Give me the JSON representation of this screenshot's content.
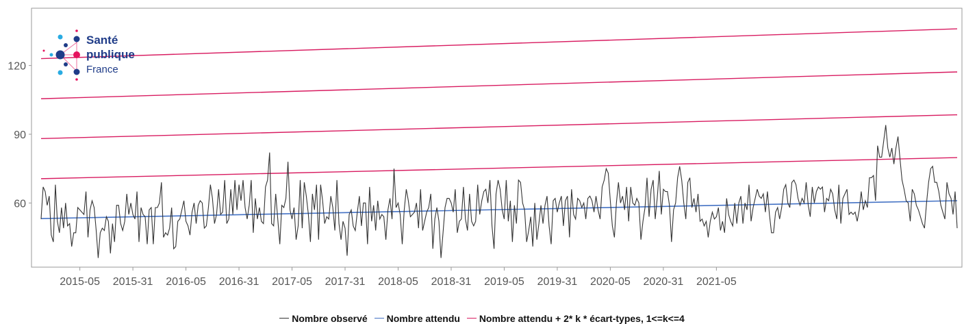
{
  "chart_data": {
    "type": "line",
    "x_axis": {
      "tick_labels": [
        "2015-05",
        "2015-31",
        "2016-05",
        "2016-31",
        "2017-05",
        "2017-31",
        "2018-05",
        "2018-31",
        "2019-05",
        "2019-31",
        "2020-05",
        "2020-31",
        "2021-05"
      ],
      "tick_positions_weekindex": [
        19,
        45,
        71,
        97,
        123,
        149,
        175,
        201,
        227,
        253,
        279,
        305,
        331
      ]
    },
    "y_axis": {
      "ticks": [
        60,
        90,
        120
      ],
      "ylim": [
        32,
        145
      ]
    },
    "grid": false,
    "legend_position": "bottom",
    "series": [
      {
        "name": "Nombre observé",
        "color": "#333333",
        "values": [
          53,
          67,
          65,
          59,
          63,
          46,
          43,
          68,
          52,
          47,
          58,
          49,
          60,
          50,
          51,
          41,
          47,
          47,
          58,
          57,
          56,
          55,
          65,
          45,
          57,
          61,
          58,
          48,
          36,
          47,
          49,
          48,
          54,
          52,
          38,
          51,
          43,
          59,
          59,
          51,
          48,
          52,
          64,
          55,
          60,
          55,
          53,
          65,
          43,
          58,
          55,
          54,
          42,
          57,
          58,
          42,
          58,
          58,
          60,
          69,
          45,
          47,
          46,
          49,
          58,
          40,
          41,
          52,
          53,
          57,
          61,
          52,
          50,
          46,
          56,
          60,
          51,
          59,
          61,
          60,
          49,
          50,
          58,
          68,
          62,
          51,
          55,
          66,
          55,
          56,
          70,
          51,
          53,
          66,
          55,
          70,
          57,
          68,
          61,
          70,
          58,
          53,
          59,
          70,
          47,
          62,
          53,
          58,
          52,
          51,
          67,
          70,
          82,
          51,
          50,
          64,
          53,
          42,
          59,
          58,
          62,
          78,
          57,
          53,
          58,
          44,
          50,
          70,
          49,
          69,
          63,
          55,
          43,
          64,
          57,
          68,
          44,
          68,
          61,
          51,
          54,
          53,
          63,
          58,
          48,
          70,
          51,
          44,
          52,
          49,
          37,
          55,
          57,
          50,
          48,
          56,
          63,
          50,
          60,
          60,
          42,
          67,
          52,
          59,
          48,
          61,
          53,
          55,
          54,
          44,
          57,
          62,
          53,
          75,
          58,
          60,
          55,
          42,
          57,
          66,
          61,
          54,
          55,
          56,
          60,
          49,
          66,
          48,
          52,
          56,
          58,
          64,
          40,
          53,
          58,
          52,
          36,
          47,
          58,
          62,
          62,
          60,
          56,
          66,
          47,
          52,
          53,
          67,
          53,
          48,
          64,
          52,
          50,
          52,
          68,
          55,
          61,
          65,
          66,
          60,
          70,
          50,
          40,
          64,
          70,
          66,
          57,
          53,
          70,
          52,
          61,
          43,
          59,
          51,
          70,
          69,
          60,
          57,
          43,
          48,
          54,
          41,
          60,
          44,
          51,
          59,
          51,
          59,
          63,
          50,
          42,
          61,
          62,
          56,
          60,
          63,
          50,
          61,
          63,
          45,
          66,
          55,
          53,
          62,
          61,
          58,
          60,
          53,
          62,
          63,
          61,
          56,
          63,
          57,
          53,
          67,
          70,
          75,
          73,
          61,
          50,
          45,
          60,
          69,
          60,
          63,
          57,
          67,
          52,
          67,
          60,
          59,
          62,
          60,
          44,
          52,
          58,
          71,
          54,
          66,
          70,
          53,
          62,
          74,
          55,
          66,
          65,
          65,
          59,
          43,
          57,
          60,
          71,
          76,
          70,
          60,
          53,
          69,
          71,
          58,
          62,
          56,
          64,
          52,
          53,
          50,
          52,
          45,
          52,
          56,
          53,
          54,
          58,
          48,
          52,
          47,
          62,
          55,
          52,
          50,
          60,
          51,
          60,
          63,
          51,
          60,
          57,
          68,
          52,
          58,
          62,
          66,
          63,
          62,
          64,
          56,
          65,
          55,
          47,
          47,
          56,
          58,
          53,
          58,
          66,
          68,
          60,
          58,
          69,
          70,
          68,
          62,
          59,
          62,
          60,
          69,
          59,
          54,
          67,
          60,
          65,
          67,
          66,
          67,
          56,
          62,
          61,
          66,
          64,
          57,
          53,
          68,
          51,
          62,
          64,
          66,
          55,
          56,
          55,
          56,
          52,
          57,
          65,
          57,
          61,
          58,
          71,
          71,
          72,
          61,
          85,
          80,
          80,
          87,
          94,
          84,
          80,
          84,
          77,
          84,
          89,
          79,
          70,
          66,
          61,
          60,
          52,
          66,
          64,
          59,
          57,
          54,
          51,
          49,
          60,
          69,
          75,
          76,
          69,
          69,
          65,
          59,
          56,
          53,
          69,
          64,
          62,
          55,
          65,
          49
        ]
      },
      {
        "name": "Nombre attendu",
        "color": "#4472c4",
        "values_linear": {
          "start": 53.2,
          "end": 61.0
        }
      },
      {
        "name": "Nombre attendu + 2* k * écart-types, 1<=k<=4",
        "color": "#d81b60",
        "lines": [
          {
            "k": 1,
            "start": 70.6,
            "end": 79.8
          },
          {
            "k": 2,
            "start": 88.1,
            "end": 98.5
          },
          {
            "k": 3,
            "start": 105.5,
            "end": 117.2
          },
          {
            "k": 4,
            "start": 123.0,
            "end": 136.0
          }
        ]
      }
    ]
  },
  "logo": {
    "line1": "Santé",
    "line2": "publique",
    "line3": "France",
    "colors": {
      "navy": "#1f3c88",
      "cyan": "#29abe2",
      "magenta": "#e5135e"
    }
  },
  "legend": {
    "items": [
      {
        "label": "Nombre observé",
        "color": "#333333"
      },
      {
        "label": "Nombre attendu",
        "color": "#4472c4"
      },
      {
        "label": "Nombre attendu + 2* k * écart-types, 1<=k<=4",
        "color": "#d81b60"
      }
    ]
  }
}
